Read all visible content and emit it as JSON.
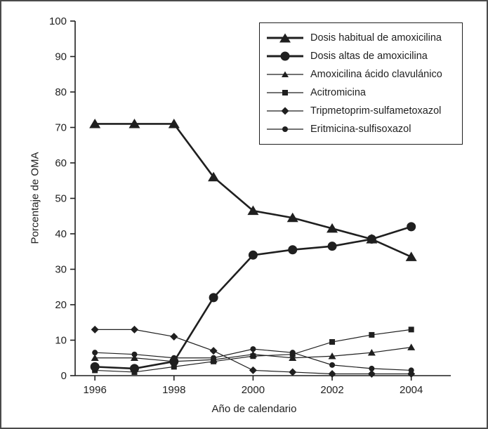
{
  "figure": {
    "background": "#ffffff",
    "border_color": "#4a4a4a"
  },
  "chart_data": {
    "type": "line",
    "title": "",
    "xlabel": "Año de calendario",
    "ylabel": "Porcentaje de OMA",
    "xlim": [
      1995.5,
      2005.0
    ],
    "ylim": [
      0,
      100
    ],
    "xticks": [
      1996,
      1998,
      2000,
      2002,
      2004
    ],
    "yticks": [
      0,
      10,
      20,
      30,
      40,
      50,
      60,
      70,
      80,
      90,
      100
    ],
    "grid": false,
    "legend_position": "top-right",
    "color": "#1f1f1f",
    "x": [
      1996,
      1997,
      1998,
      1999,
      2000,
      2001,
      2002,
      2003,
      2004
    ],
    "series": [
      {
        "name": "Dosis habitual de amoxicilina",
        "marker": "triangle-large",
        "line_width": 2.6,
        "values": [
          71,
          71,
          71,
          56,
          46.5,
          44.5,
          41.5,
          38.5,
          33.5
        ]
      },
      {
        "name": "Dosis altas de amoxicilina",
        "marker": "circle-large",
        "line_width": 2.6,
        "values": [
          2.5,
          2,
          4,
          22,
          34,
          35.5,
          36.5,
          38.5,
          42
        ]
      },
      {
        "name": "Amoxicilina ácido clavulánico",
        "marker": "triangle-small",
        "line_width": 1.2,
        "values": [
          5,
          5,
          4,
          4.5,
          6,
          5,
          5.5,
          6.5,
          8
        ]
      },
      {
        "name": "Acitromicina",
        "marker": "square-small",
        "line_width": 1.2,
        "values": [
          1.5,
          1,
          2.5,
          4,
          5.5,
          6,
          9.5,
          11.5,
          13
        ]
      },
      {
        "name": "Tripmetoprim-sulfametoxazol",
        "marker": "diamond-small",
        "line_width": 1.2,
        "values": [
          13,
          13,
          11,
          7,
          1.5,
          1,
          0.5,
          0.5,
          0.5
        ]
      },
      {
        "name": "Eritmicina-sulfisoxazol",
        "marker": "circle-small",
        "line_width": 1.2,
        "values": [
          6.5,
          6,
          5,
          5,
          7.5,
          6.5,
          3,
          2,
          1.5
        ]
      }
    ]
  }
}
